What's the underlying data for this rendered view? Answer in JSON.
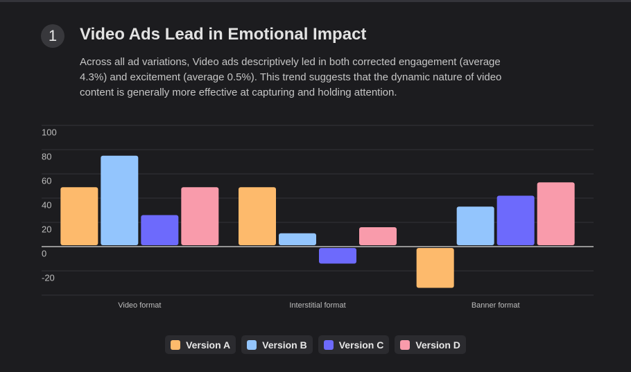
{
  "section": {
    "number": "1",
    "title": "Video Ads Lead in Emotional Impact",
    "text": "Across all ad variations, Video ads descriptively led in both corrected engagement (average 4.3%) and excitement (average 0.5%). This trend suggests that the dynamic nature of video content is generally more effective at capturing and holding attention."
  },
  "chart_data": {
    "type": "bar",
    "categories": [
      "Video format",
      "Interstitial format",
      "Banner format"
    ],
    "series": [
      {
        "name": "Version A",
        "color": "#fdba6c",
        "values": [
          49,
          49,
          -34
        ]
      },
      {
        "name": "Version B",
        "color": "#93c5fd",
        "values": [
          75,
          11,
          33
        ]
      },
      {
        "name": "Version C",
        "color": "#6d6afc",
        "values": [
          26,
          -14,
          42
        ]
      },
      {
        "name": "Version D",
        "color": "#f99bab",
        "values": [
          49,
          16,
          53
        ]
      }
    ],
    "ylim": [
      -40,
      100
    ],
    "yticks": [
      -20,
      0,
      20,
      40,
      60,
      80,
      100
    ],
    "grid": true,
    "legend": "bottom"
  }
}
